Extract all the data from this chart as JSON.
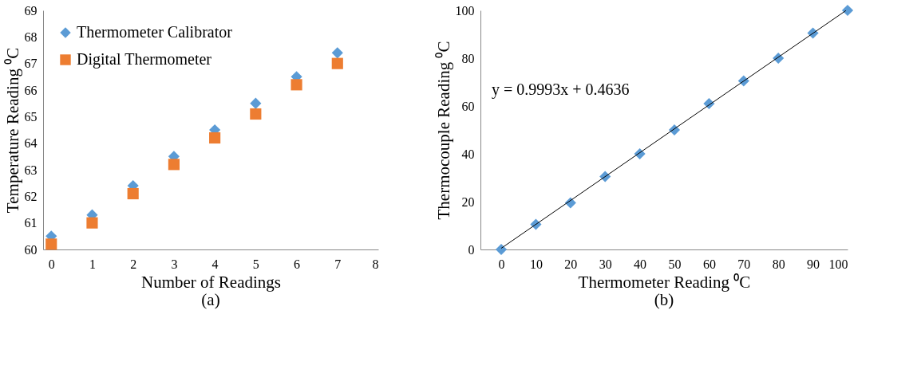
{
  "chart_data": [
    {
      "type": "scatter",
      "xlabel": "Number of Readings",
      "ylabel": "Temperature Reading ⁰C",
      "annotations": [
        "(a)"
      ],
      "x": [
        0,
        1,
        2,
        3,
        4,
        5,
        6,
        7
      ],
      "xlim": [
        -0.2,
        8
      ],
      "xticks": [
        0,
        1,
        2,
        3,
        4,
        5,
        6,
        7,
        8
      ],
      "ylim": [
        60,
        69
      ],
      "yticks": [
        60,
        61,
        62,
        63,
        64,
        65,
        66,
        67,
        68,
        69
      ],
      "grid": false,
      "legend": "top left",
      "series": [
        {
          "name": "Thermometer Calibrator",
          "color": "#5b9bd5",
          "marker": "diamond",
          "values": [
            60.5,
            61.3,
            62.4,
            63.5,
            64.5,
            65.5,
            66.5,
            67.4
          ]
        },
        {
          "name": "Digital Thermometer",
          "color": "#ed7d31",
          "marker": "square",
          "values": [
            60.2,
            61.0,
            62.1,
            63.2,
            64.2,
            65.1,
            66.2,
            67.0
          ]
        }
      ]
    },
    {
      "type": "scatter",
      "xlabel": "Thermometer Reading  ⁰C",
      "ylabel": "Thermocouple Reading ⁰C",
      "annotations": [
        "y = 0.9993x + 0.4636",
        "(b)"
      ],
      "xlim": [
        -6,
        100
      ],
      "xticks": [
        0,
        10,
        20,
        30,
        40,
        50,
        60,
        70,
        80,
        90,
        100
      ],
      "ylim": [
        0,
        100
      ],
      "yticks": [
        0,
        20,
        40,
        60,
        80,
        100
      ],
      "grid": false,
      "legend": false,
      "series": [
        {
          "color": "#5b9bd5",
          "marker": "diamond",
          "x": [
            0,
            10,
            20,
            30,
            40,
            50,
            60,
            70,
            80,
            90,
            100
          ],
          "values": [
            0,
            10.5,
            19.5,
            30.5,
            40,
            50,
            61,
            70.5,
            80,
            90.5,
            100
          ]
        },
        {
          "type": "line",
          "color": "#000000",
          "marker": "none",
          "x": [
            0,
            99.5
          ],
          "values": [
            0.5,
            99.9
          ]
        }
      ]
    }
  ]
}
